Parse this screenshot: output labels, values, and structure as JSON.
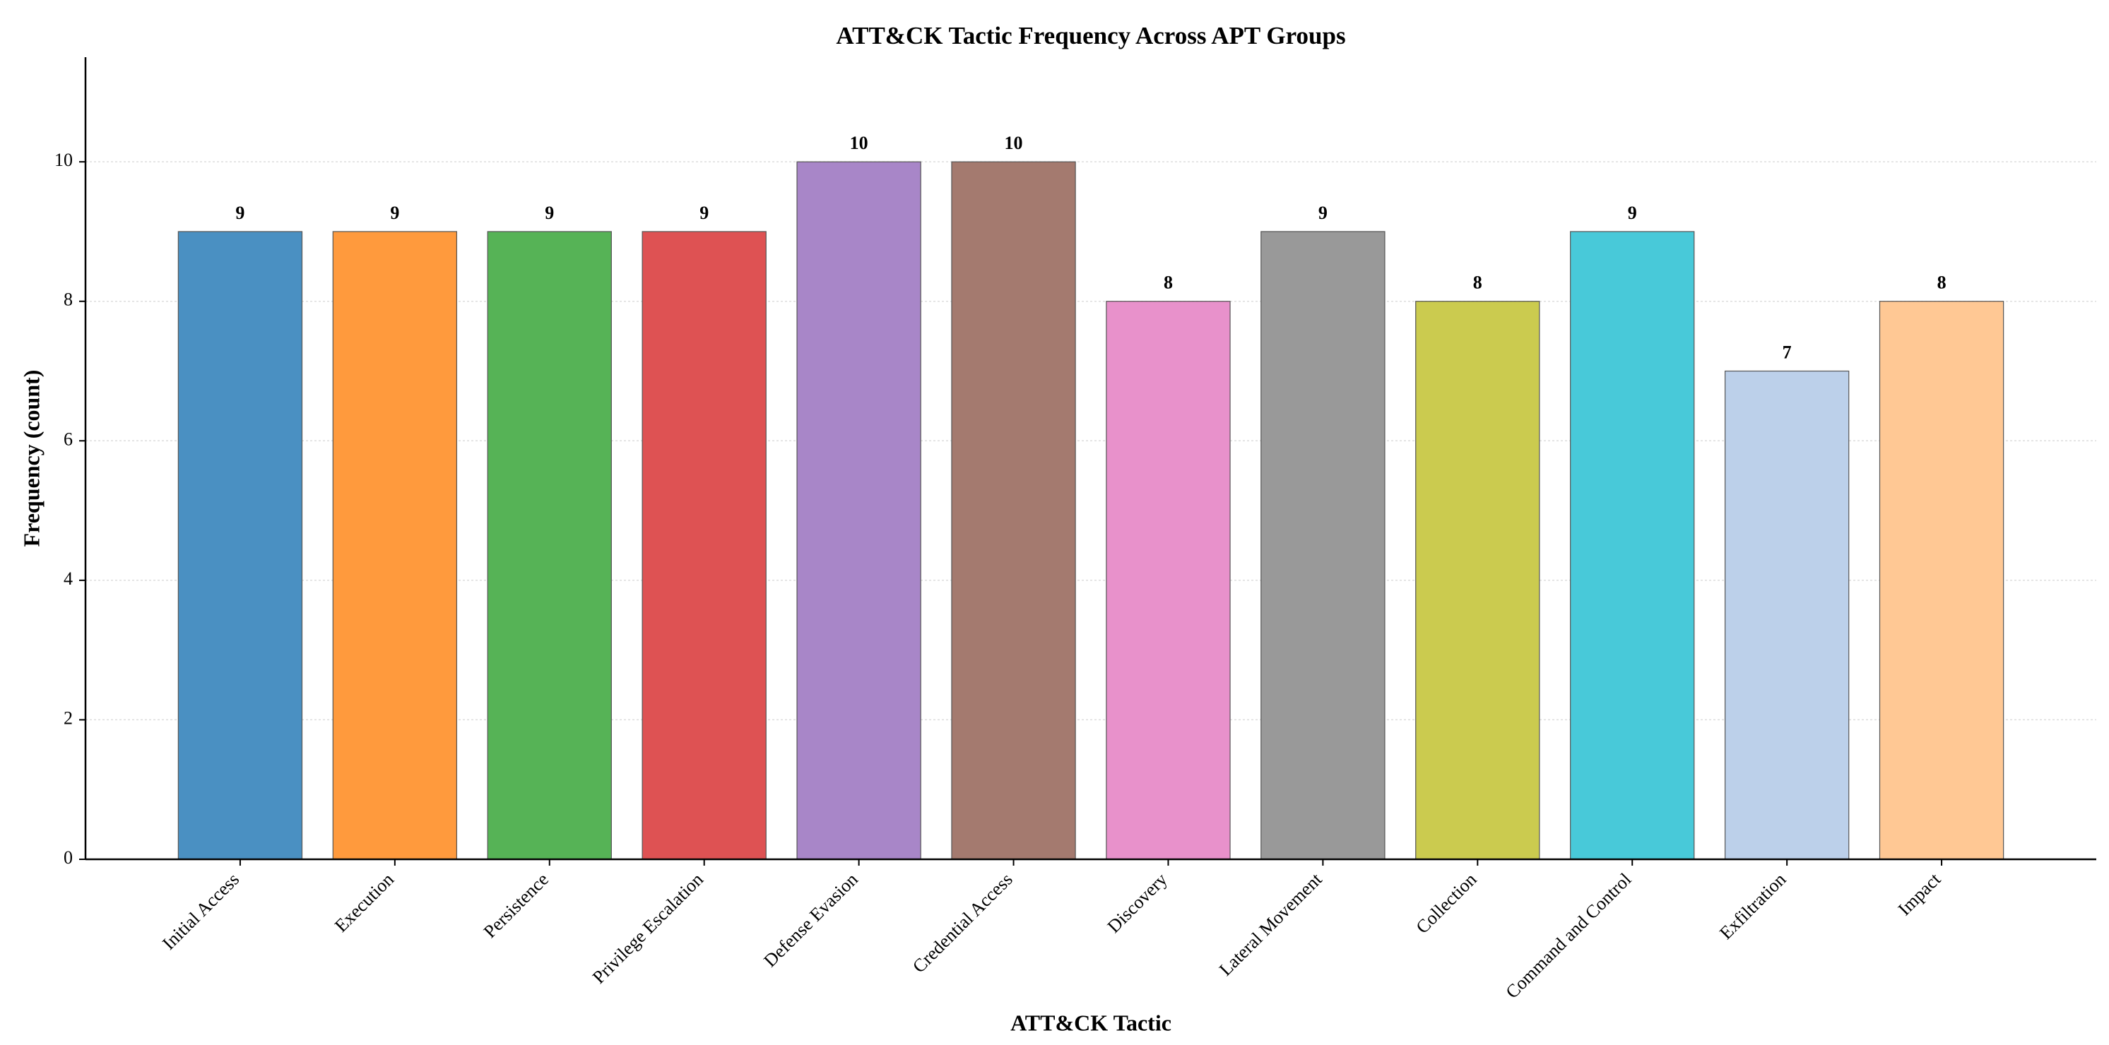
{
  "chart_data": {
    "type": "bar",
    "title": "ATT&CK Tactic Frequency Across APT Groups",
    "x_label": "ATT&CK Tactic",
    "y_label": "Frequency (count)",
    "categories": [
      "Initial Access",
      "Execution",
      "Persistence",
      "Privilege Escalation",
      "Defense Evasion",
      "Credential Access",
      "Discovery",
      "Lateral Movement",
      "Collection",
      "Command and Control",
      "Exfiltration",
      "Impact"
    ],
    "values": [
      9,
      9,
      9,
      9,
      10,
      10,
      8,
      9,
      8,
      9,
      7,
      8
    ],
    "colors": [
      "#4a90c2",
      "#ff9a3d",
      "#56b356",
      "#de5253",
      "#a886c8",
      "#a47a6f",
      "#e891cb",
      "#999999",
      "#cbcb4f",
      "#48c9d9",
      "#bcd0ea",
      "#ffc894"
    ],
    "ylim": [
      0,
      11.5
    ],
    "yticks": [
      0,
      2,
      4,
      6,
      8,
      10
    ],
    "grid": true
  }
}
